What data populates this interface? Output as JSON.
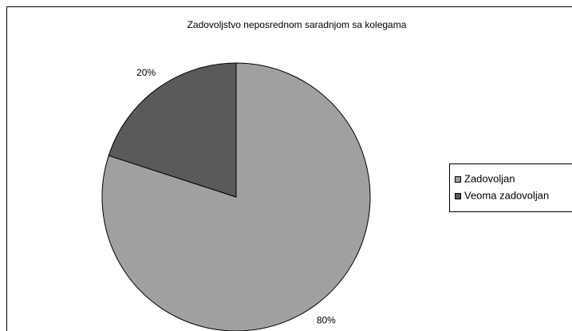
{
  "chart_data": {
    "type": "pie",
    "title": "Zadovoljstvo neposrednom saradnjom sa kolegama",
    "categories": [
      "Zadovoljan",
      "Veoma zadovoljan"
    ],
    "values": [
      80,
      20
    ],
    "value_labels": [
      "80%",
      "20%"
    ],
    "colors": [
      "#a0a0a0",
      "#5a5a5a"
    ],
    "legend": "right"
  }
}
